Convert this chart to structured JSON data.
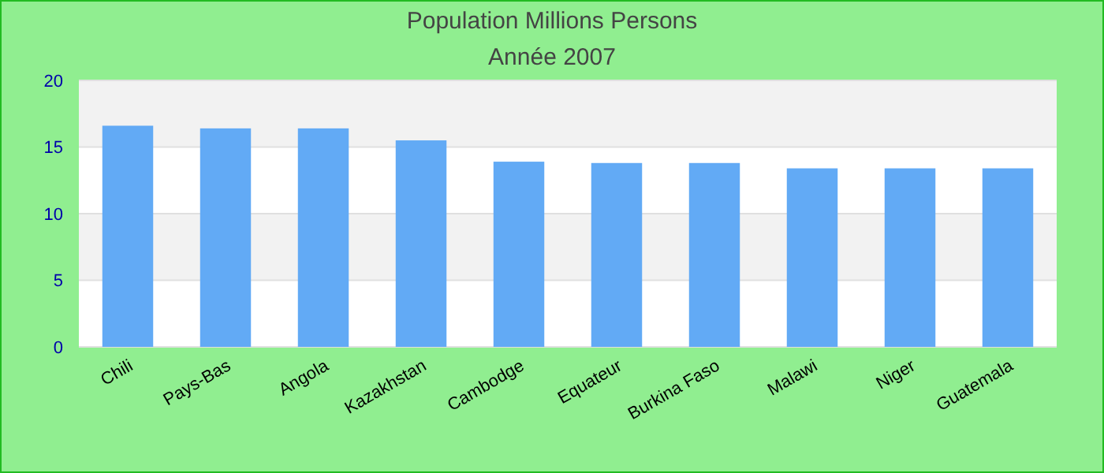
{
  "chart_data": {
    "type": "bar",
    "title": "Population Millions Persons",
    "subtitle": "Année 2007",
    "categories": [
      "Chili",
      "Pays-Bas",
      "Angola",
      "Kazakhstan",
      "Cambodge",
      "Equateur",
      "Burkina Faso",
      "Malawi",
      "Niger",
      "Guatemala"
    ],
    "values": [
      16.6,
      16.4,
      16.4,
      15.5,
      13.9,
      13.8,
      13.8,
      13.4,
      13.4,
      13.4
    ],
    "color": "#62aaf5",
    "ylim": [
      0,
      20
    ],
    "yticks": [
      0,
      5,
      10,
      15,
      20
    ],
    "grid": "y"
  }
}
